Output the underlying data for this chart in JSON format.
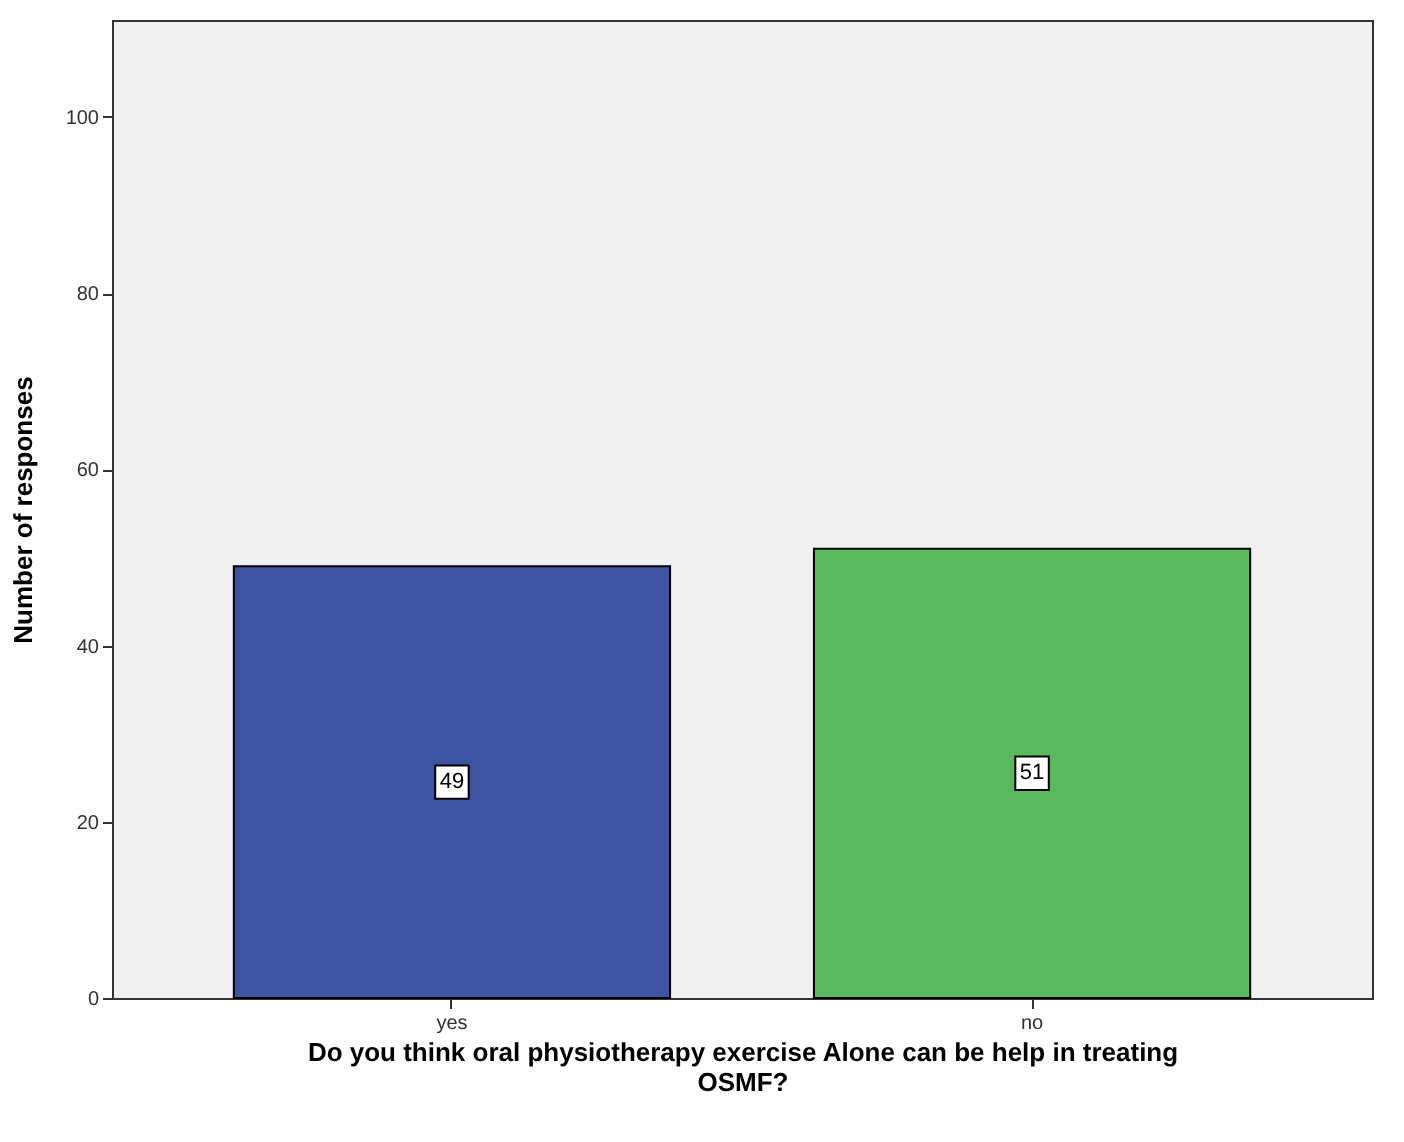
{
  "chart_data": {
    "type": "bar",
    "categories": [
      "yes",
      "no"
    ],
    "values": [
      49,
      51
    ],
    "colors": [
      "#3f53a3",
      "#5cb85c"
    ],
    "xlabel": "Do you think oral physiotherapy exercise Alone can be help in treating OSMF?",
    "ylabel": "Number of responses",
    "ylim": [
      0,
      111
    ],
    "yticks": [
      0,
      20,
      40,
      60,
      80,
      100
    ],
    "grid": false,
    "data_labels": true
  }
}
